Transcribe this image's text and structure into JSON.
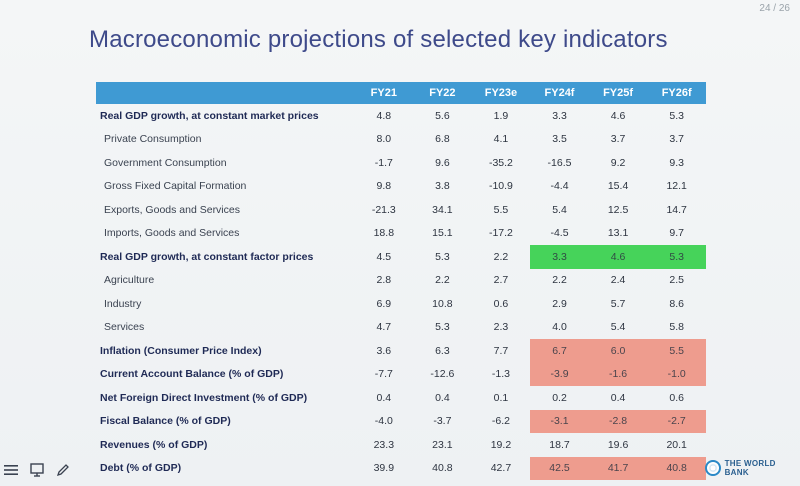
{
  "slide": {
    "page_counter": "24 / 26",
    "title": "Macroeconomic projections of selected key indicators",
    "logo_text": "THE WORLD BANK"
  },
  "table": {
    "columns": [
      "FY21",
      "FY22",
      "FY23e",
      "FY24f",
      "FY25f",
      "FY26f"
    ],
    "rows": [
      {
        "label": "Real GDP growth, at constant market prices",
        "values": [
          "4.8",
          "5.6",
          "1.9",
          "3.3",
          "4.6",
          "5.3"
        ],
        "level": "main",
        "highlight": null
      },
      {
        "label": "Private Consumption",
        "values": [
          "8.0",
          "6.8",
          "4.1",
          "3.5",
          "3.7",
          "3.7"
        ],
        "level": "sub",
        "highlight": null
      },
      {
        "label": "Government Consumption",
        "values": [
          "-1.7",
          "9.6",
          "-35.2",
          "-16.5",
          "9.2",
          "9.3"
        ],
        "level": "sub",
        "highlight": null
      },
      {
        "label": "Gross Fixed Capital Formation",
        "values": [
          "9.8",
          "3.8",
          "-10.9",
          "-4.4",
          "15.4",
          "12.1"
        ],
        "level": "sub",
        "highlight": null
      },
      {
        "label": "Exports, Goods and Services",
        "values": [
          "-21.3",
          "34.1",
          "5.5",
          "5.4",
          "12.5",
          "14.7"
        ],
        "level": "sub",
        "highlight": null
      },
      {
        "label": "Imports, Goods and Services",
        "values": [
          "18.8",
          "15.1",
          "-17.2",
          "-4.5",
          "13.1",
          "9.7"
        ],
        "level": "sub",
        "highlight": null
      },
      {
        "label": "Real GDP growth, at constant factor prices",
        "values": [
          "4.5",
          "5.3",
          "2.2",
          "3.3",
          "4.6",
          "5.3"
        ],
        "level": "main",
        "highlight": "green"
      },
      {
        "label": "Agriculture",
        "values": [
          "2.8",
          "2.2",
          "2.7",
          "2.2",
          "2.4",
          "2.5"
        ],
        "level": "sub",
        "highlight": null
      },
      {
        "label": "Industry",
        "values": [
          "6.9",
          "10.8",
          "0.6",
          "2.9",
          "5.7",
          "8.6"
        ],
        "level": "sub",
        "highlight": null
      },
      {
        "label": "Services",
        "values": [
          "4.7",
          "5.3",
          "2.3",
          "4.0",
          "5.4",
          "5.8"
        ],
        "level": "sub",
        "highlight": null
      },
      {
        "label": "Inflation (Consumer Price Index)",
        "values": [
          "3.6",
          "6.3",
          "7.7",
          "6.7",
          "6.0",
          "5.5"
        ],
        "level": "main",
        "highlight": "red"
      },
      {
        "label": "Current Account Balance (% of GDP)",
        "values": [
          "-7.7",
          "-12.6",
          "-1.3",
          "-3.9",
          "-1.6",
          "-1.0"
        ],
        "level": "main",
        "highlight": "red"
      },
      {
        "label": "Net Foreign Direct Investment (% of GDP)",
        "values": [
          "0.4",
          "0.4",
          "0.1",
          "0.2",
          "0.4",
          "0.6"
        ],
        "level": "main",
        "highlight": null
      },
      {
        "label": "Fiscal Balance (% of GDP)",
        "values": [
          "-4.0",
          "-3.7",
          "-6.2",
          "-3.1",
          "-2.8",
          "-2.7"
        ],
        "level": "main",
        "highlight": "red"
      },
      {
        "label": "Revenues (% of GDP)",
        "values": [
          "23.3",
          "23.1",
          "19.2",
          "18.7",
          "19.6",
          "20.1"
        ],
        "level": "main",
        "highlight": null
      },
      {
        "label": "Debt (% of GDP)",
        "values": [
          "39.9",
          "40.8",
          "42.7",
          "42.5",
          "41.7",
          "40.8"
        ],
        "level": "main",
        "highlight": "red"
      }
    ]
  },
  "toolbar": {
    "icons": [
      "menu-icon",
      "screen-icon",
      "pen-icon"
    ]
  },
  "colors": {
    "header_bg": "#3f9ad3",
    "title_color": "#3e4a8a",
    "highlight_green": "#46d35a",
    "highlight_red": "#ee9c8e"
  }
}
